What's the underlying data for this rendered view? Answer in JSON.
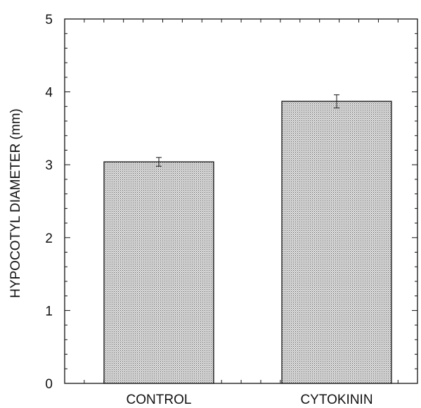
{
  "chart_data": {
    "type": "bar",
    "title": "",
    "xlabel": "",
    "ylabel": "HYPOCOTYL DIAMETER (mm)",
    "ylim": [
      0,
      5
    ],
    "yticks": [
      "0",
      "1",
      "2",
      "3",
      "4",
      "5"
    ],
    "categories": [
      "CONTROL",
      "CYTOKININ"
    ],
    "values": [
      3.04,
      3.87
    ],
    "errors": [
      0.06,
      0.09
    ],
    "grid": false,
    "legend": "none",
    "bar_fill": "#d4d4d4",
    "bar_stroke": "#111111"
  }
}
